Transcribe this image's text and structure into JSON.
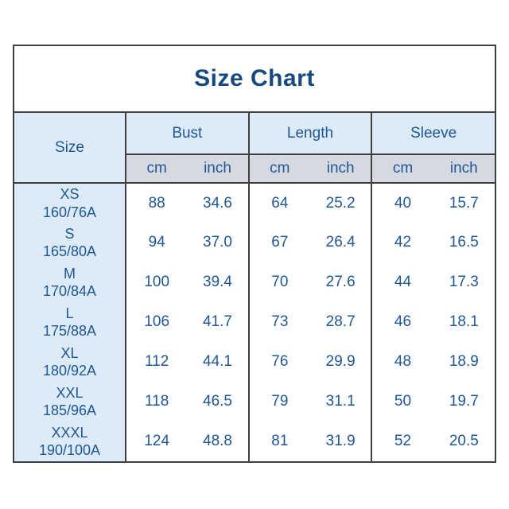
{
  "chart_data": {
    "type": "table",
    "title": "Size Chart",
    "row_header": "Size",
    "column_groups": [
      "Bust",
      "Length",
      "Sleeve"
    ],
    "units": [
      "cm",
      "inch"
    ],
    "rows": [
      {
        "size": "XS",
        "size_spec": "160/76A",
        "bust_cm": "88",
        "bust_inch": "34.6",
        "length_cm": "64",
        "length_inch": "25.2",
        "sleeve_cm": "40",
        "sleeve_inch": "15.7"
      },
      {
        "size": "S",
        "size_spec": "165/80A",
        "bust_cm": "94",
        "bust_inch": "37.0",
        "length_cm": "67",
        "length_inch": "26.4",
        "sleeve_cm": "42",
        "sleeve_inch": "16.5"
      },
      {
        "size": "M",
        "size_spec": "170/84A",
        "bust_cm": "100",
        "bust_inch": "39.4",
        "length_cm": "70",
        "length_inch": "27.6",
        "sleeve_cm": "44",
        "sleeve_inch": "17.3"
      },
      {
        "size": "L",
        "size_spec": "175/88A",
        "bust_cm": "106",
        "bust_inch": "41.7",
        "length_cm": "73",
        "length_inch": "28.7",
        "sleeve_cm": "46",
        "sleeve_inch": "18.1"
      },
      {
        "size": "XL",
        "size_spec": "180/92A",
        "bust_cm": "112",
        "bust_inch": "44.1",
        "length_cm": "76",
        "length_inch": "29.9",
        "sleeve_cm": "48",
        "sleeve_inch": "18.9"
      },
      {
        "size": "XXL",
        "size_spec": "185/96A",
        "bust_cm": "118",
        "bust_inch": "46.5",
        "length_cm": "79",
        "length_inch": "31.1",
        "sleeve_cm": "50",
        "sleeve_inch": "19.7"
      },
      {
        "size": "XXXL",
        "size_spec": "190/100A",
        "bust_cm": "124",
        "bust_inch": "48.8",
        "length_cm": "81",
        "length_inch": "31.9",
        "sleeve_cm": "52",
        "sleeve_inch": "20.5"
      }
    ]
  },
  "colors": {
    "border": "#3f3f3f",
    "header_background": "#dcebf7",
    "unit_row_background": "#d6d9e0",
    "text": "#1f5795",
    "title_text": "#17497f",
    "page_background": "#ffffff"
  }
}
